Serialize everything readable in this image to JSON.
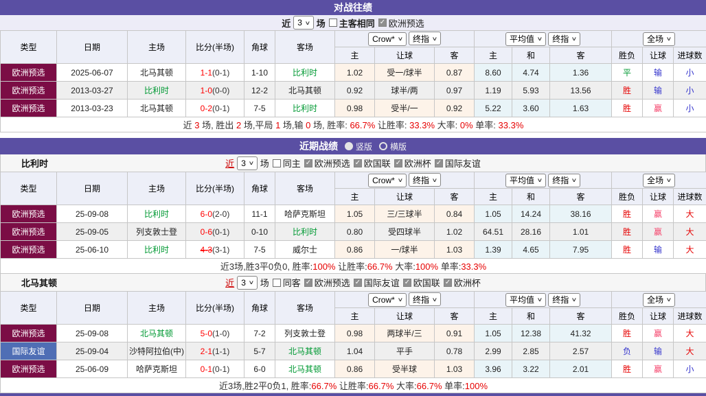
{
  "colors": {
    "purple": "#5a4fa3",
    "maroon": "#7b0d45",
    "friendly_blue": "#4f6eb5",
    "red": "#e60000",
    "win_pink": "#f5466e",
    "loss_blue": "#3333cc",
    "green": "#009933"
  },
  "head": {
    "type": "类型",
    "date": "日期",
    "home": "主场",
    "score": "比分(半场)",
    "corner": "角球",
    "away": "客场",
    "dd_crow": "Crow*",
    "dd_final": "终指",
    "dd_avg": "平均值",
    "dd_full": "全场",
    "sub_home": "主",
    "sub_hcp": "让球",
    "sub_away": "客",
    "sub_avg_home": "主",
    "sub_draw": "和",
    "sub_avg_away": "客",
    "sub_wl": "胜负",
    "sub_hcp2": "让球",
    "sub_goals": "进球数"
  },
  "h2h": {
    "title": "对战往绩",
    "filter": {
      "near": "近",
      "count": "3",
      "matches": "场",
      "same_ha": "主客相同",
      "euro_q": "欧洲预选"
    },
    "rows": [
      {
        "type": "欧洲预选",
        "type_bg": "#7b0d45",
        "date": "2025-06-07",
        "home": "北马其顿",
        "home_c": "#222222",
        "score": "1-1",
        "half": "(0-1)",
        "corner": "1-10",
        "away": "比利时",
        "away_c": "#009933",
        "o_home": "1.02",
        "handicap": "受一/球半",
        "o_away": "0.87",
        "avg_home": "8.60",
        "avg_draw": "4.74",
        "avg_away": "1.36",
        "res_wl": "平",
        "res_wl_c": "#009933",
        "res_hcp": "输",
        "res_hcp_c": "#3333cc",
        "res_goal": "小",
        "res_goal_c": "#3333cc"
      },
      {
        "type": "欧洲预选",
        "type_bg": "#7b0d45",
        "date": "2013-03-27",
        "home": "比利时",
        "home_c": "#009933",
        "score": "1-0",
        "half": "(0-0)",
        "corner": "12-2",
        "away": "北马其顿",
        "away_c": "#222222",
        "o_home": "0.92",
        "handicap": "球半/两",
        "o_away": "0.97",
        "avg_home": "1.19",
        "avg_draw": "5.93",
        "avg_away": "13.56",
        "res_wl": "胜",
        "res_wl_c": "#e60000",
        "res_hcp": "输",
        "res_hcp_c": "#3333cc",
        "res_goal": "小",
        "res_goal_c": "#3333cc"
      },
      {
        "type": "欧洲预选",
        "type_bg": "#7b0d45",
        "date": "2013-03-23",
        "home": "北马其顿",
        "home_c": "#222222",
        "score": "0-2",
        "half": "(0-1)",
        "corner": "7-5",
        "away": "比利时",
        "away_c": "#009933",
        "o_home": "0.98",
        "handicap": "受半/一",
        "o_away": "0.92",
        "avg_home": "5.22",
        "avg_draw": "3.60",
        "avg_away": "1.63",
        "res_wl": "胜",
        "res_wl_c": "#e60000",
        "res_hcp": "赢",
        "res_hcp_c": "#f5466e",
        "res_goal": "小",
        "res_goal_c": "#3333cc"
      }
    ],
    "summary": [
      {
        "t": "近 "
      },
      {
        "t": "3",
        "c": "#e60000"
      },
      {
        "t": " 场, 胜出 "
      },
      {
        "t": "2",
        "c": "#e60000"
      },
      {
        "t": " 场,平局 "
      },
      {
        "t": "1",
        "c": "#e60000"
      },
      {
        "t": " 场,输 "
      },
      {
        "t": "0",
        "c": "#e60000"
      },
      {
        "t": " 场, 胜率: "
      },
      {
        "t": "66.7%",
        "c": "#e60000"
      },
      {
        "t": " 让胜率: "
      },
      {
        "t": "33.3%",
        "c": "#e60000"
      },
      {
        "t": " 大率: "
      },
      {
        "t": "0%",
        "c": "#e60000"
      },
      {
        "t": " 单率: "
      },
      {
        "t": "33.3%",
        "c": "#e60000"
      }
    ]
  },
  "recent": {
    "title": "近期战绩",
    "radio_v": "竖版",
    "radio_h": "横版",
    "belgium": {
      "name": "比利时",
      "filter": {
        "near": "近",
        "count": "3",
        "matches": "场",
        "same": "同主",
        "cbs": [
          "欧洲预选",
          "欧国联",
          "欧洲杯",
          "国际友谊"
        ]
      },
      "rows": [
        {
          "type": "欧洲预选",
          "type_bg": "#7b0d45",
          "date": "25-09-08",
          "home": "比利时",
          "home_c": "#009933",
          "score": "6-0",
          "half": "(2-0)",
          "corner": "11-1",
          "away": "哈萨克斯坦",
          "away_c": "#222222",
          "o_home": "1.05",
          "handicap": "三/三球半",
          "o_away": "0.84",
          "avg_home": "1.05",
          "avg_draw": "14.24",
          "avg_away": "38.16",
          "res_wl": "胜",
          "res_wl_c": "#e60000",
          "res_hcp": "赢",
          "res_hcp_c": "#f5466e",
          "res_goal": "大",
          "res_goal_c": "#e60000"
        },
        {
          "type": "欧洲预选",
          "type_bg": "#7b0d45",
          "date": "25-09-05",
          "home": "列支敦士登",
          "home_c": "#222222",
          "score": "0-6",
          "half": "(0-1)",
          "corner": "0-10",
          "away": "比利时",
          "away_c": "#009933",
          "o_home": "0.80",
          "handicap": "受四球半",
          "o_away": "1.02",
          "avg_home": "64.51",
          "avg_draw": "28.16",
          "avg_away": "1.01",
          "res_wl": "胜",
          "res_wl_c": "#e60000",
          "res_hcp": "赢",
          "res_hcp_c": "#f5466e",
          "res_goal": "大",
          "res_goal_c": "#e60000"
        },
        {
          "type": "欧洲预选",
          "type_bg": "#7b0d45",
          "date": "25-06-10",
          "home": "比利时",
          "home_c": "#009933",
          "score": "4-3",
          "half": "(3-1)",
          "corner": "7-5",
          "away": "威尔士",
          "away_c": "#222222",
          "o_home": "0.86",
          "handicap": "一/球半",
          "o_away": "1.03",
          "avg_home": "1.39",
          "avg_draw": "4.65",
          "avg_away": "7.95",
          "res_wl": "胜",
          "res_wl_c": "#e60000",
          "res_hcp": "输",
          "res_hcp_c": "#3333cc",
          "res_goal": "大",
          "res_goal_c": "#e60000"
        }
      ],
      "summary": [
        {
          "t": "近3场,胜3平0负0, 胜率:"
        },
        {
          "t": "100%",
          "c": "#e60000"
        },
        {
          "t": " 让胜率:"
        },
        {
          "t": "66.7%",
          "c": "#e60000"
        },
        {
          "t": " 大率:"
        },
        {
          "t": "100%",
          "c": "#e60000"
        },
        {
          "t": " 单率:"
        },
        {
          "t": "33.3%",
          "c": "#e60000"
        }
      ]
    },
    "macedonia": {
      "name": "北马其顿",
      "filter": {
        "near": "近",
        "count": "3",
        "matches": "场",
        "same": "同客",
        "cbs": [
          "欧洲预选",
          "国际友谊",
          "欧国联",
          "欧洲杯"
        ]
      },
      "rows": [
        {
          "type": "欧洲预选",
          "type_bg": "#7b0d45",
          "date": "25-09-08",
          "home": "北马其顿",
          "home_c": "#009933",
          "score": "5-0",
          "half": "(1-0)",
          "corner": "7-2",
          "away": "列支敦士登",
          "away_c": "#222222",
          "o_home": "0.98",
          "handicap": "两球半/三",
          "o_away": "0.91",
          "avg_home": "1.05",
          "avg_draw": "12.38",
          "avg_away": "41.32",
          "res_wl": "胜",
          "res_wl_c": "#e60000",
          "res_hcp": "赢",
          "res_hcp_c": "#f5466e",
          "res_goal": "大",
          "res_goal_c": "#e60000"
        },
        {
          "type": "国际友谊",
          "type_bg": "#4f6eb5",
          "date": "25-09-04",
          "home": "沙特阿拉伯(中)",
          "home_c": "#222222",
          "score": "2-1",
          "half": "(1-1)",
          "corner": "5-7",
          "away": "北马其顿",
          "away_c": "#009933",
          "o_home": "1.04",
          "handicap": "平手",
          "o_away": "0.78",
          "avg_home": "2.99",
          "avg_draw": "2.85",
          "avg_away": "2.57",
          "res_wl": "负",
          "res_wl_c": "#3333cc",
          "res_hcp": "输",
          "res_hcp_c": "#3333cc",
          "res_goal": "大",
          "res_goal_c": "#e60000"
        },
        {
          "type": "欧洲预选",
          "type_bg": "#7b0d45",
          "date": "25-06-09",
          "home": "哈萨克斯坦",
          "home_c": "#222222",
          "score": "0-1",
          "half": "(0-1)",
          "corner": "6-0",
          "away": "北马其顿",
          "away_c": "#009933",
          "o_home": "0.86",
          "handicap": "受半球",
          "o_away": "1.03",
          "avg_home": "3.96",
          "avg_draw": "3.22",
          "avg_away": "2.01",
          "res_wl": "胜",
          "res_wl_c": "#e60000",
          "res_hcp": "赢",
          "res_hcp_c": "#f5466e",
          "res_goal": "小",
          "res_goal_c": "#3333cc"
        }
      ],
      "summary": [
        {
          "t": "近3场,胜2平0负1, 胜率:"
        },
        {
          "t": "66.7%",
          "c": "#e60000"
        },
        {
          "t": " 让胜率:"
        },
        {
          "t": "66.7%",
          "c": "#e60000"
        },
        {
          "t": " 大率:"
        },
        {
          "t": "66.7%",
          "c": "#e60000"
        },
        {
          "t": " 单率:"
        },
        {
          "t": "100%",
          "c": "#e60000"
        }
      ]
    }
  }
}
